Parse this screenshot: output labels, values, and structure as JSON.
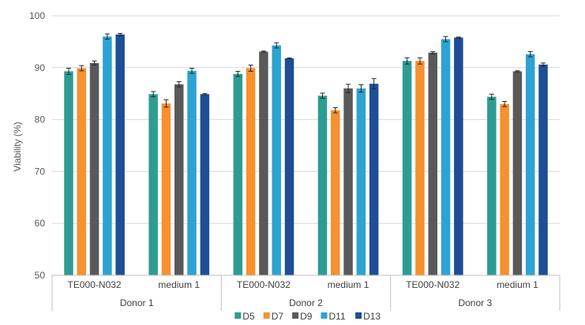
{
  "chart_data": {
    "type": "bar",
    "title": "",
    "xlabel": "",
    "ylabel": "Viability (%)",
    "ylim": [
      50,
      100
    ],
    "yticks": [
      50,
      60,
      70,
      80,
      90,
      100
    ],
    "grid": true,
    "legend_position": "bottom",
    "groups": [
      {
        "label": "Donor 1",
        "categories": [
          "TE000-N032",
          "medium 1"
        ]
      },
      {
        "label": "Donor 2",
        "categories": [
          "TE000-N032",
          "medium 1"
        ]
      },
      {
        "label": "Donor 3",
        "categories": [
          "TE000-N032",
          "medium 1"
        ]
      }
    ],
    "series": [
      {
        "name": "D5",
        "color": "#2E9C93",
        "values": [
          89.3,
          84.9,
          88.8,
          84.6,
          91.3,
          84.4
        ],
        "errors": [
          0.6,
          0.5,
          0.5,
          0.5,
          0.6,
          0.5
        ]
      },
      {
        "name": "D7",
        "color": "#F7902E",
        "values": [
          89.9,
          83.1,
          89.9,
          81.8,
          91.3,
          83.0
        ],
        "errors": [
          0.5,
          0.7,
          0.6,
          0.5,
          0.6,
          0.5
        ]
      },
      {
        "name": "D9",
        "color": "#595959",
        "values": [
          90.9,
          86.8,
          93.1,
          86.0,
          92.9,
          89.3
        ],
        "errors": [
          0.4,
          0.5,
          0.1,
          0.8,
          0.2,
          0.1
        ]
      },
      {
        "name": "D11",
        "color": "#2DA3D2",
        "values": [
          96.0,
          89.4,
          94.3,
          86.0,
          95.5,
          92.6
        ],
        "errors": [
          0.5,
          0.5,
          0.5,
          0.7,
          0.5,
          0.5
        ]
      },
      {
        "name": "D13",
        "color": "#1D4E96",
        "values": [
          96.4,
          84.9,
          91.8,
          86.9,
          95.8,
          90.6
        ],
        "errors": [
          0.2,
          0.1,
          0.1,
          1.0,
          0.1,
          0.3
        ]
      }
    ]
  }
}
